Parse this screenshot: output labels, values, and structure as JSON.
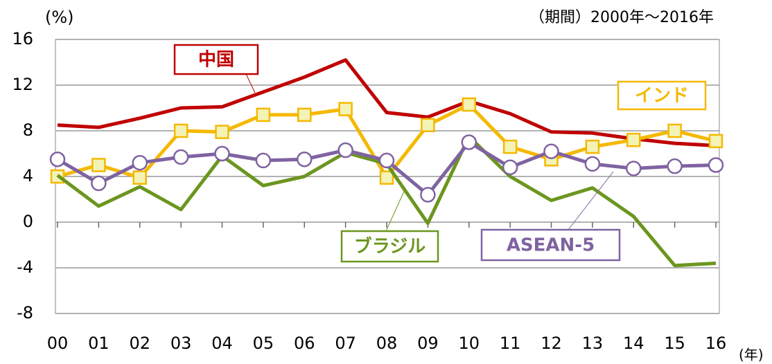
{
  "chart_data": {
    "type": "line",
    "y_label": "(%)",
    "subtitle": "（期間）2000年～2016年",
    "x_label": "(年)",
    "categories": [
      "00",
      "01",
      "02",
      "03",
      "04",
      "05",
      "06",
      "07",
      "08",
      "09",
      "10",
      "11",
      "12",
      "13",
      "14",
      "15",
      "16"
    ],
    "series": [
      {
        "name": "中国",
        "color": "#c00000",
        "marker": "none",
        "values": [
          8.5,
          8.3,
          9.1,
          10.0,
          10.1,
          11.4,
          12.7,
          14.2,
          9.6,
          9.2,
          10.6,
          9.5,
          7.9,
          7.8,
          7.3,
          6.9,
          6.7
        ]
      },
      {
        "name": "インド",
        "color": "#f5b800",
        "marker": "square",
        "values": [
          4.0,
          5.0,
          3.9,
          8.0,
          7.9,
          9.4,
          9.4,
          9.9,
          3.9,
          8.5,
          10.3,
          6.6,
          5.5,
          6.6,
          7.2,
          8.0,
          7.1
        ]
      },
      {
        "name": "ブラジル",
        "color": "#6b961f",
        "marker": "none",
        "values": [
          4.1,
          1.4,
          3.1,
          1.1,
          5.8,
          3.2,
          4.0,
          6.1,
          5.1,
          -0.1,
          7.5,
          4.0,
          1.9,
          3.0,
          0.5,
          -3.8,
          -3.6
        ]
      },
      {
        "name": "ASEAN-5",
        "color": "#7f63a1",
        "marker": "circle",
        "values": [
          5.5,
          3.4,
          5.2,
          5.7,
          6.0,
          5.4,
          5.5,
          6.3,
          5.4,
          2.4,
          7.0,
          4.8,
          6.2,
          5.1,
          4.7,
          4.9,
          5.0
        ]
      }
    ],
    "ylim": [
      -8,
      16
    ],
    "yticks": [
      -8,
      -4,
      0,
      4,
      8,
      12,
      16
    ],
    "grid": true
  }
}
